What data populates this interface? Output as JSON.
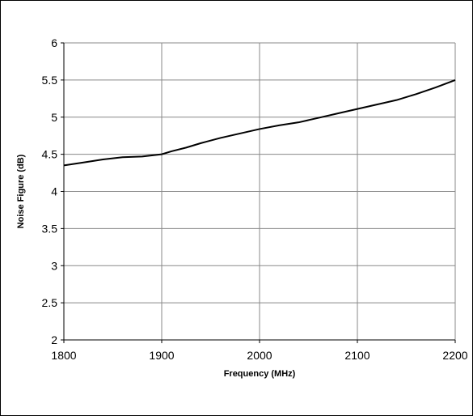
{
  "chart_data": {
    "type": "line",
    "title": "",
    "xlabel": "Frequency (MHz)",
    "ylabel": "Noise Figure (dB)",
    "xlim": [
      1800,
      2200
    ],
    "ylim": [
      2,
      6
    ],
    "x_ticks": [
      1800,
      1900,
      2000,
      2100,
      2200
    ],
    "y_ticks": [
      2,
      2.5,
      3,
      3.5,
      4,
      4.5,
      5,
      5.5,
      6
    ],
    "x_tick_labels": [
      "1800",
      "1900",
      "2000",
      "2100",
      "2200"
    ],
    "y_tick_labels": [
      "2",
      "2.5",
      "3",
      "3.5",
      "4",
      "4.5",
      "5",
      "5.5",
      "6"
    ],
    "grid": true,
    "legend": "none",
    "series": [
      {
        "color": "#000000",
        "x": [
          1800,
          1820,
          1840,
          1860,
          1880,
          1900,
          1910,
          1925,
          1940,
          1960,
          1980,
          2000,
          2020,
          2040,
          2060,
          2080,
          2100,
          2120,
          2140,
          2160,
          2180,
          2200
        ],
        "y": [
          4.35,
          4.39,
          4.43,
          4.46,
          4.47,
          4.5,
          4.54,
          4.59,
          4.65,
          4.72,
          4.78,
          4.84,
          4.89,
          4.93,
          4.99,
          5.05,
          5.11,
          5.17,
          5.23,
          5.31,
          5.4,
          5.5
        ]
      }
    ]
  }
}
